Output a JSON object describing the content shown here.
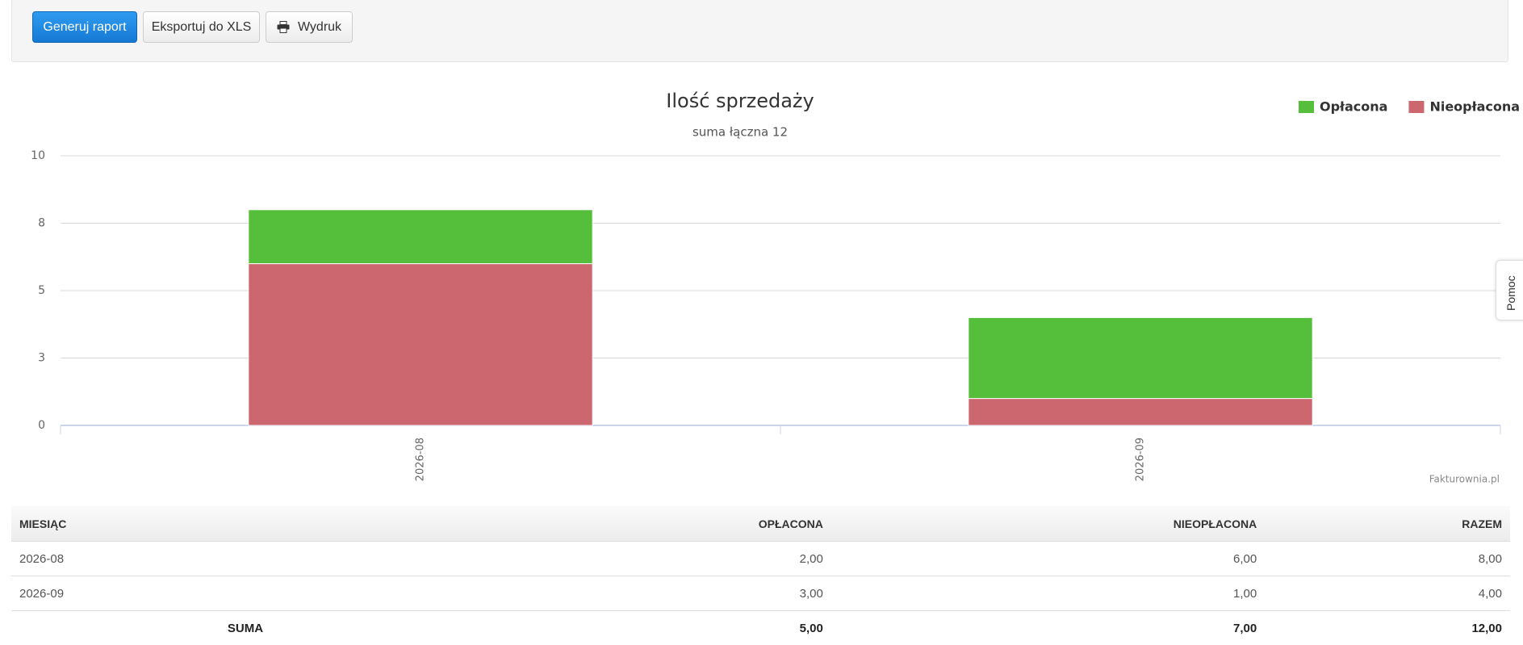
{
  "toolbar": {
    "buttons": [
      "Generuj raport",
      "Eksportuj do XLS",
      "Wydruk"
    ]
  },
  "chart_data": {
    "type": "bar",
    "stacked": true,
    "title": "Ilość sprzedaży",
    "subtitle": "suma łączna 12",
    "categories": [
      "2026-08",
      "2026-09"
    ],
    "series": [
      {
        "name": "Opłacona",
        "color": "#55bf3b",
        "values": [
          2,
          3
        ]
      },
      {
        "name": "Nieopłacona",
        "color": "#cc6770",
        "values": [
          6,
          1
        ]
      }
    ],
    "ylim": [
      0,
      10
    ],
    "yticks": [
      0,
      {
        "value": 2.5,
        "label": "3"
      },
      5,
      {
        "value": 7.5,
        "label": "8"
      },
      10
    ],
    "grid": true,
    "legend": "top-right",
    "credits": "Fakturownia.pl"
  },
  "table": {
    "header": [
      "MIESIĄC",
      "OPŁACONA",
      "NIEOPŁACONA",
      "RAZEM"
    ],
    "rows": [
      [
        "2026-08",
        "2,00",
        "6,00",
        "8,00"
      ],
      [
        "2026-09",
        "3,00",
        "1,00",
        "4,00"
      ]
    ],
    "total": [
      "SUMA",
      "5,00",
      "7,00",
      "12,00"
    ]
  },
  "help_tab": "Pomoc"
}
